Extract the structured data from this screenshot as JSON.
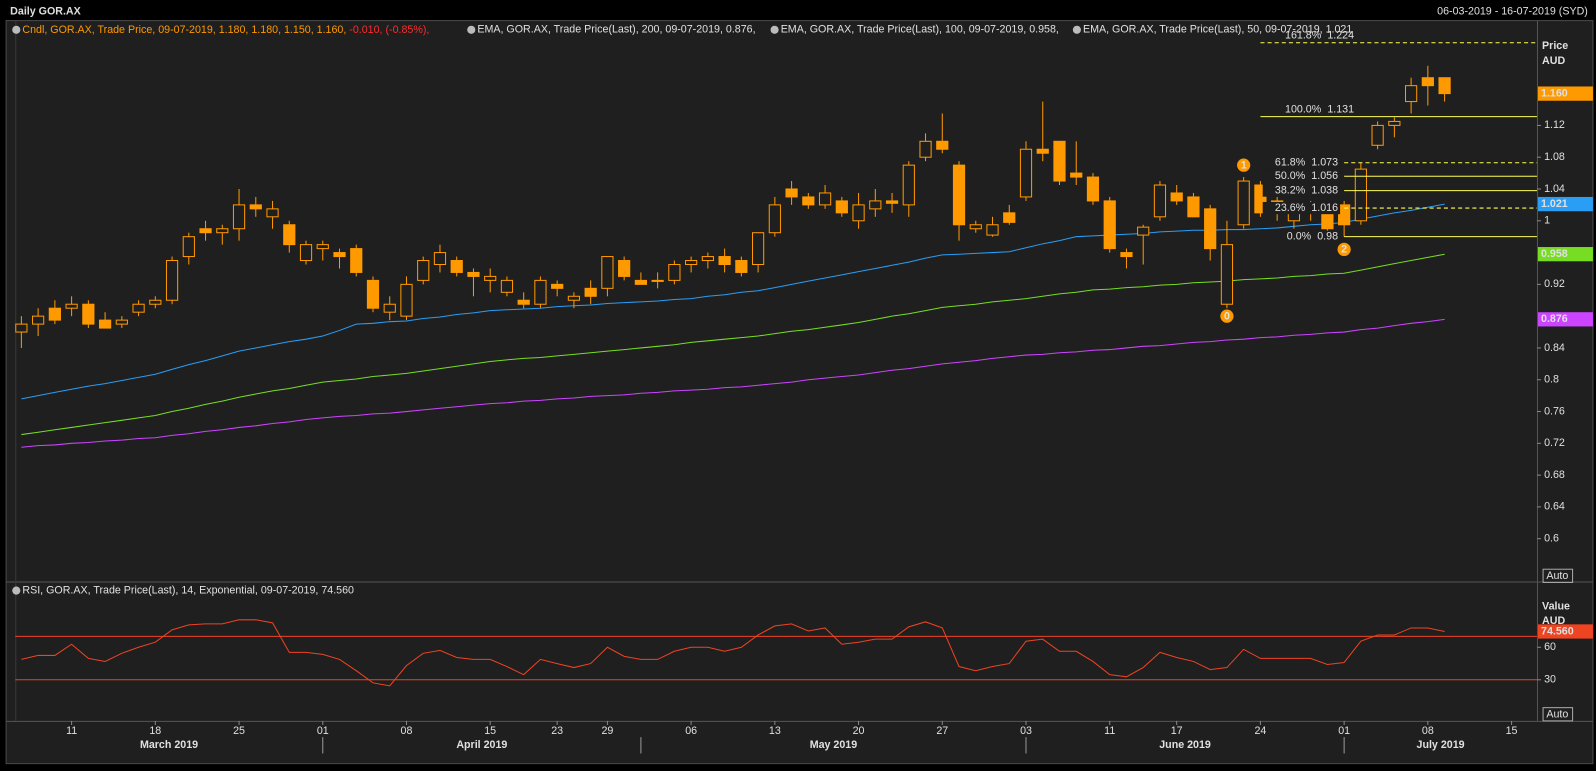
{
  "header": {
    "title": "Daily GOR.AX",
    "range": "06-03-2019 - 16-07-2019 (SYD)"
  },
  "chart_data": [
    {
      "type": "candlestick",
      "name": "Cndl, GOR.AX, Trade Price, 09-07-2019, 1.180, 1.180, 1.150, 1.160, ",
      "change_label": "-0.010, (-0.85%),",
      "color": "#ff9900",
      "change_color": "#ff2a2a",
      "last_value_label": "1.160",
      "x": [
        "2019-03-06",
        "2019-03-07",
        "2019-03-08",
        "2019-03-11",
        "2019-03-12",
        "2019-03-13",
        "2019-03-14",
        "2019-03-15",
        "2019-03-18",
        "2019-03-19",
        "2019-03-20",
        "2019-03-21",
        "2019-03-22",
        "2019-03-25",
        "2019-03-26",
        "2019-03-27",
        "2019-03-28",
        "2019-03-29",
        "2019-04-01",
        "2019-04-02",
        "2019-04-03",
        "2019-04-04",
        "2019-04-05",
        "2019-04-08",
        "2019-04-09",
        "2019-04-10",
        "2019-04-11",
        "2019-04-12",
        "2019-04-15",
        "2019-04-16",
        "2019-04-17",
        "2019-04-18",
        "2019-04-23",
        "2019-04-24",
        "2019-04-26",
        "2019-04-29",
        "2019-04-30",
        "2019-05-01",
        "2019-05-02",
        "2019-05-03",
        "2019-05-06",
        "2019-05-07",
        "2019-05-08",
        "2019-05-09",
        "2019-05-10",
        "2019-05-13",
        "2019-05-14",
        "2019-05-15",
        "2019-05-16",
        "2019-05-17",
        "2019-05-20",
        "2019-05-21",
        "2019-05-22",
        "2019-05-23",
        "2019-05-24",
        "2019-05-27",
        "2019-05-28",
        "2019-05-29",
        "2019-05-30",
        "2019-05-31",
        "2019-06-03",
        "2019-06-04",
        "2019-06-05",
        "2019-06-06",
        "2019-06-07",
        "2019-06-11",
        "2019-06-12",
        "2019-06-13",
        "2019-06-14",
        "2019-06-17",
        "2019-06-18",
        "2019-06-19",
        "2019-06-20",
        "2019-06-21",
        "2019-06-24",
        "2019-06-25",
        "2019-06-26",
        "2019-06-27",
        "2019-06-28",
        "2019-07-01",
        "2019-07-02",
        "2019-07-03",
        "2019-07-04",
        "2019-07-05",
        "2019-07-08",
        "2019-07-09"
      ],
      "open": [
        0.86,
        0.87,
        0.89,
        0.89,
        0.895,
        0.875,
        0.87,
        0.885,
        0.895,
        0.9,
        0.955,
        0.99,
        0.985,
        0.99,
        1.02,
        1.005,
        0.995,
        0.95,
        0.965,
        0.96,
        0.965,
        0.925,
        0.885,
        0.88,
        0.925,
        0.945,
        0.95,
        0.935,
        0.925,
        0.91,
        0.9,
        0.895,
        0.92,
        0.9,
        0.915,
        0.915,
        0.95,
        0.925,
        0.925,
        0.925,
        0.945,
        0.95,
        0.955,
        0.95,
        0.945,
        0.985,
        1.04,
        1.03,
        1.02,
        1.025,
        1.0,
        1.015,
        1.025,
        1.02,
        1.08,
        1.1,
        1.07,
        0.99,
        0.982,
        1.01,
        1.03,
        1.09,
        1.1,
        1.06,
        1.055,
        1.025,
        0.96,
        0.982,
        1.005,
        1.035,
        1.03,
        1.015,
        0.895,
        0.995,
        1.045,
        1.025,
        1.0,
        1.012,
        1.01,
        1.02,
        1.0,
        1.095,
        1.12,
        1.15,
        1.18,
        1.18
      ],
      "high": [
        0.88,
        0.89,
        0.9,
        0.905,
        0.9,
        0.885,
        0.88,
        0.9,
        0.905,
        0.955,
        0.985,
        1.0,
        0.995,
        1.04,
        1.03,
        1.025,
        1.0,
        0.975,
        0.975,
        0.965,
        0.97,
        0.93,
        0.905,
        0.93,
        0.955,
        0.97,
        0.955,
        0.94,
        0.94,
        0.93,
        0.91,
        0.93,
        0.925,
        0.91,
        0.925,
        0.955,
        0.955,
        0.935,
        0.935,
        0.95,
        0.955,
        0.96,
        0.965,
        0.955,
        0.985,
        1.03,
        1.05,
        1.035,
        1.045,
        1.03,
        1.035,
        1.04,
        1.035,
        1.075,
        1.11,
        1.135,
        1.075,
        1.0,
        1.005,
        1.02,
        1.1,
        1.15,
        1.1,
        1.1,
        1.06,
        1.03,
        0.965,
        0.995,
        1.05,
        1.045,
        1.035,
        1.02,
        1.0,
        1.055,
        1.05,
        1.03,
        1.02,
        1.025,
        1.015,
        1.025,
        1.073,
        1.125,
        1.13,
        1.18,
        1.195,
        1.18
      ],
      "low": [
        0.84,
        0.855,
        0.87,
        0.88,
        0.865,
        0.865,
        0.865,
        0.88,
        0.89,
        0.895,
        0.945,
        0.975,
        0.97,
        0.975,
        1.005,
        0.99,
        0.96,
        0.945,
        0.95,
        0.94,
        0.93,
        0.885,
        0.875,
        0.875,
        0.92,
        0.935,
        0.93,
        0.905,
        0.91,
        0.905,
        0.89,
        0.89,
        0.905,
        0.89,
        0.895,
        0.905,
        0.925,
        0.92,
        0.915,
        0.92,
        0.935,
        0.94,
        0.935,
        0.93,
        0.935,
        0.98,
        1.02,
        1.015,
        1.015,
        1.005,
        0.99,
        1.005,
        1.01,
        1.005,
        1.075,
        1.085,
        0.975,
        0.985,
        0.98,
        0.995,
        1.025,
        1.075,
        1.045,
        1.045,
        1.02,
        0.96,
        0.94,
        0.945,
        1.0,
        1.02,
        1.005,
        0.95,
        0.89,
        0.99,
        1.005,
        1.0,
        0.99,
        1.0,
        0.985,
        0.98,
        0.995,
        1.09,
        1.105,
        1.135,
        1.145,
        1.15
      ],
      "close": [
        0.87,
        0.88,
        0.875,
        0.895,
        0.87,
        0.865,
        0.875,
        0.895,
        0.9,
        0.95,
        0.98,
        0.985,
        0.99,
        1.02,
        1.015,
        1.015,
        0.97,
        0.97,
        0.97,
        0.955,
        0.935,
        0.89,
        0.895,
        0.92,
        0.95,
        0.96,
        0.935,
        0.93,
        0.93,
        0.925,
        0.895,
        0.925,
        0.915,
        0.905,
        0.905,
        0.955,
        0.93,
        0.92,
        0.925,
        0.945,
        0.95,
        0.955,
        0.945,
        0.935,
        0.985,
        1.02,
        1.03,
        1.02,
        1.035,
        1.01,
        1.02,
        1.025,
        1.022,
        1.07,
        1.1,
        1.09,
        0.995,
        0.995,
        0.995,
        0.998,
        1.09,
        1.085,
        1.05,
        1.055,
        1.025,
        0.965,
        0.955,
        0.992,
        1.045,
        1.025,
        1.005,
        0.965,
        0.97,
        1.05,
        1.01,
        1.01,
        1.015,
        1.015,
        0.99,
        0.995,
        1.065,
        1.12,
        1.125,
        1.17,
        1.17,
        1.16
      ],
      "series": [
        {
          "name": "EMA, GOR.AX, Trade Price(Last),  200, 09-07-2019, 0.876,",
          "color": "#cc44ff",
          "values": [
            0.715,
            0.717,
            0.718,
            0.72,
            0.721,
            0.723,
            0.724,
            0.726,
            0.727,
            0.73,
            0.732,
            0.735,
            0.737,
            0.74,
            0.742,
            0.745,
            0.747,
            0.75,
            0.752,
            0.754,
            0.755,
            0.757,
            0.758,
            0.76,
            0.762,
            0.764,
            0.766,
            0.768,
            0.77,
            0.771,
            0.773,
            0.774,
            0.776,
            0.777,
            0.779,
            0.78,
            0.781,
            0.783,
            0.784,
            0.786,
            0.787,
            0.788,
            0.79,
            0.791,
            0.793,
            0.795,
            0.797,
            0.8,
            0.802,
            0.804,
            0.806,
            0.809,
            0.812,
            0.814,
            0.817,
            0.82,
            0.822,
            0.824,
            0.827,
            0.829,
            0.831,
            0.832,
            0.834,
            0.835,
            0.837,
            0.838,
            0.84,
            0.842,
            0.843,
            0.845,
            0.847,
            0.848,
            0.85,
            0.851,
            0.853,
            0.854,
            0.856,
            0.857,
            0.859,
            0.86,
            0.863,
            0.865,
            0.868,
            0.871,
            0.873,
            0.876
          ]
        },
        {
          "name": "EMA, GOR.AX, Trade Price(Last),  100, 09-07-2019, 0.958,",
          "color": "#77dd22",
          "values": [
            0.731,
            0.734,
            0.737,
            0.74,
            0.743,
            0.746,
            0.749,
            0.752,
            0.755,
            0.76,
            0.764,
            0.769,
            0.773,
            0.778,
            0.782,
            0.786,
            0.789,
            0.793,
            0.797,
            0.799,
            0.801,
            0.804,
            0.806,
            0.808,
            0.811,
            0.814,
            0.817,
            0.82,
            0.823,
            0.825,
            0.827,
            0.828,
            0.83,
            0.832,
            0.834,
            0.836,
            0.838,
            0.84,
            0.842,
            0.844,
            0.847,
            0.849,
            0.851,
            0.853,
            0.855,
            0.858,
            0.861,
            0.863,
            0.866,
            0.869,
            0.872,
            0.876,
            0.88,
            0.883,
            0.887,
            0.891,
            0.893,
            0.895,
            0.898,
            0.9,
            0.902,
            0.905,
            0.908,
            0.91,
            0.913,
            0.914,
            0.916,
            0.917,
            0.919,
            0.92,
            0.922,
            0.923,
            0.924,
            0.926,
            0.927,
            0.928,
            0.93,
            0.931,
            0.933,
            0.934,
            0.938,
            0.942,
            0.946,
            0.95,
            0.954,
            0.958
          ]
        },
        {
          "name": "EMA, GOR.AX, Trade Price(Last),  50, 09-07-2019, 1.021",
          "color": "#2a9df4",
          "values": [
            0.776,
            0.78,
            0.784,
            0.788,
            0.792,
            0.795,
            0.799,
            0.803,
            0.807,
            0.813,
            0.819,
            0.824,
            0.83,
            0.836,
            0.84,
            0.844,
            0.848,
            0.851,
            0.855,
            0.862,
            0.87,
            0.871,
            0.873,
            0.874,
            0.877,
            0.879,
            0.882,
            0.884,
            0.887,
            0.888,
            0.889,
            0.89,
            0.892,
            0.893,
            0.894,
            0.896,
            0.897,
            0.898,
            0.899,
            0.901,
            0.902,
            0.905,
            0.907,
            0.91,
            0.912,
            0.916,
            0.92,
            0.924,
            0.928,
            0.932,
            0.936,
            0.94,
            0.944,
            0.948,
            0.953,
            0.957,
            0.958,
            0.959,
            0.96,
            0.961,
            0.966,
            0.971,
            0.975,
            0.98,
            0.981,
            0.982,
            0.983,
            0.984,
            0.986,
            0.987,
            0.988,
            0.988,
            0.989,
            0.989,
            0.99,
            0.991,
            0.993,
            0.995,
            0.996,
            0.998,
            1.002,
            1.006,
            1.01,
            1.013,
            1.017,
            1.021
          ]
        }
      ],
      "ylim": [
        0.5475,
        1.2365
      ],
      "yticks": [
        1.12,
        1.08,
        1.04,
        1,
        0.92,
        0.84,
        0.8,
        0.76,
        0.72,
        0.68,
        0.64,
        0.6
      ],
      "y_axis_title": [
        "Price",
        "AUD"
      ],
      "scale_label": "Auto",
      "xticks": [
        {
          "value": "2019-03-11",
          "label": "11"
        },
        {
          "value": "2019-03-18",
          "label": "18"
        },
        {
          "value": "2019-03-25",
          "label": "25"
        },
        {
          "value": "2019-04-01",
          "label": "01"
        },
        {
          "value": "2019-04-08",
          "label": "08"
        },
        {
          "value": "2019-04-15",
          "label": "15"
        },
        {
          "value": "2019-04-23",
          "label": "23"
        },
        {
          "value": "2019-04-29",
          "label": "29"
        },
        {
          "value": "2019-05-06",
          "label": "06"
        },
        {
          "value": "2019-05-13",
          "label": "13"
        },
        {
          "value": "2019-05-20",
          "label": "20"
        },
        {
          "value": "2019-05-27",
          "label": "27"
        },
        {
          "value": "2019-06-03",
          "label": "03"
        },
        {
          "value": "2019-06-11",
          "label": "11"
        },
        {
          "value": "2019-06-17",
          "label": "17"
        },
        {
          "value": "2019-06-24",
          "label": "24"
        },
        {
          "value": "2019-07-01",
          "label": "01"
        },
        {
          "value": "2019-07-08",
          "label": "08"
        },
        {
          "value": "2019-07-15",
          "label": "15"
        }
      ],
      "months": [
        {
          "value": "2019-03",
          "label": "March 2019"
        },
        {
          "value": "2019-04",
          "label": "April 2019"
        },
        {
          "value": "2019-05",
          "label": "May 2019"
        },
        {
          "value": "2019-06",
          "label": "June 2019"
        },
        {
          "value": "2019-07",
          "label": "July 2019"
        }
      ],
      "fibonacci": {
        "color": "#ffff55",
        "levels": [
          {
            "label": "161.8%",
            "value": 1.224,
            "style": "dashed",
            "start": "2019-06-24",
            "text_position": "above"
          },
          {
            "label": "100.0%",
            "value": 1.131,
            "style": "solid",
            "start": "2019-06-24",
            "text_position": "above"
          },
          {
            "label": "61.8%",
            "value": 1.073,
            "style": "dashed",
            "start": "2019-07-01",
            "text_position": "left"
          },
          {
            "label": "50.0%",
            "value": 1.056,
            "style": "solid",
            "start": "2019-07-01",
            "text_position": "left"
          },
          {
            "label": "38.2%",
            "value": 1.038,
            "style": "solid",
            "start": "2019-07-01",
            "text_position": "left"
          },
          {
            "label": "23.6%",
            "value": 1.016,
            "style": "dashed",
            "start": "2019-07-01",
            "text_position": "left"
          },
          {
            "label": "0.0%",
            "value": 0.98,
            "style": "solid",
            "start": "2019-07-01",
            "text_position": "left"
          }
        ],
        "points": [
          {
            "label": "0",
            "x": "2019-06-20",
            "y": 0.88
          },
          {
            "label": "1",
            "x": "2019-06-21",
            "y": 1.07
          },
          {
            "label": "2",
            "x": "2019-07-01",
            "y": 0.964
          }
        ]
      }
    },
    {
      "type": "line",
      "name": "RSI, GOR.AX, Trade Price(Last), 14, Exponential, 09-07-2019, 74.560",
      "color": "#ee4422",
      "last_value_label": "74.560",
      "values": [
        48.8,
        52.5,
        52.5,
        62.8,
        49.7,
        46.9,
        54.4,
        60,
        64.7,
        76,
        80.6,
        81.6,
        81.6,
        85.3,
        85.3,
        82.5,
        55.3,
        55.3,
        53.4,
        48.8,
        38.4,
        27.2,
        24.4,
        43.1,
        54.4,
        57.2,
        50.6,
        48.8,
        48.8,
        42.2,
        34.7,
        48.8,
        45,
        41.3,
        45,
        60,
        51.6,
        48.8,
        48.8,
        56.3,
        60,
        60,
        56.3,
        60,
        71.3,
        79.7,
        81.6,
        75,
        77.8,
        62.8,
        64.7,
        67.5,
        67.5,
        78.8,
        83.4,
        77.8,
        42.2,
        38.4,
        42.2,
        45,
        65.6,
        67.5,
        56.3,
        56.3,
        46.9,
        34.7,
        32.8,
        41.3,
        55.3,
        50.6,
        46.9,
        39.4,
        41.3,
        58.1,
        49.7,
        49.7,
        49.7,
        49.7,
        44.1,
        45.9,
        65.6,
        71.3,
        71.3,
        77.8,
        77.8,
        74.56
      ],
      "hlines": [
        70,
        30
      ],
      "ylim": [
        -6,
        116
      ],
      "yticks": [
        60,
        30
      ],
      "y_axis_title": [
        "Value",
        "AUD"
      ],
      "scale_label": "Auto"
    }
  ]
}
